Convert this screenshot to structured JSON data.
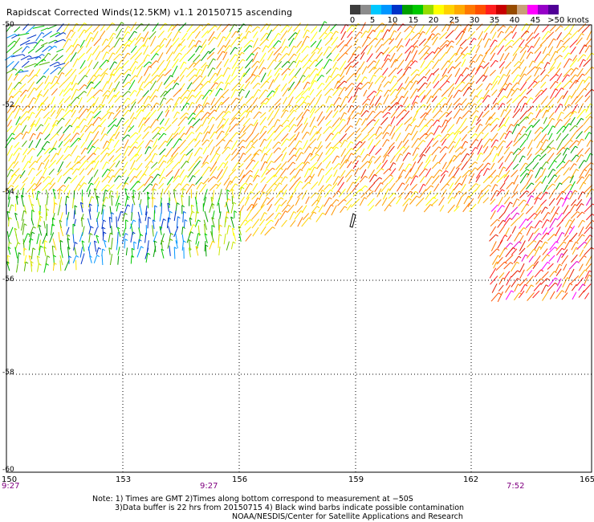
{
  "title": "Rapidscat Corrected Winds(12.5KM) v1.1 20150715 ascending",
  "legend": {
    "colors": [
      "#3c3c3c",
      "#8c8c8c",
      "#00c8ff",
      "#0096ff",
      "#0032c8",
      "#00a000",
      "#00c800",
      "#96dc00",
      "#ffff00",
      "#ffd200",
      "#ffaa00",
      "#ff7800",
      "#ff5000",
      "#ff1e1e",
      "#c80000",
      "#964b00",
      "#c8a078",
      "#ff00ff",
      "#9600c8",
      "#500096"
    ],
    "labels": [
      "0",
      "5",
      "10",
      "15",
      "20",
      "25",
      "30",
      "35",
      "40",
      "45",
      ">50 knots"
    ]
  },
  "axes": {
    "lon_labels": [
      "150",
      "153",
      "156",
      "159",
      "162",
      "165"
    ],
    "lat_labels": [
      "-50",
      "-52",
      "-54",
      "-56",
      "-58",
      "-60"
    ]
  },
  "time_labels": [
    "9:27",
    "9:27",
    "7:52"
  ],
  "notes": [
    "Note: 1) Times are GMT 2)Times along bottom correspond to measurement at −50S",
    "3)Data buffer is 22 hrs from 20150715 4) Black wind barbs indicate possible contamination",
    "NOAA/NESDIS/Center for Satellite Applications and Research"
  ]
}
